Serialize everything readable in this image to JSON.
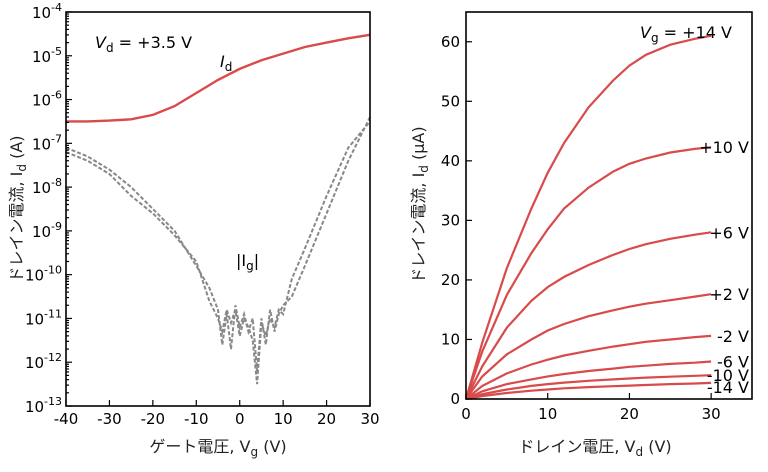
{
  "charts": {
    "left": {
      "xlabel": "ゲート電圧, V",
      "xlabel_sub": "g",
      "xlabel_unit": " (V)",
      "ylabel": "ドレイン電流, I",
      "ylabel_sub": "d",
      "ylabel_unit": " (A)",
      "annotation_main": "V",
      "annotation_sub": "d",
      "annotation_value": " = +3.5 V",
      "id_label": "I",
      "id_label_sub": "d",
      "ig_label_pre": "|I",
      "ig_label_sub": "g",
      "ig_label_post": "|"
    },
    "right": {
      "xlabel": "ドレイン電圧, V",
      "xlabel_sub": "d",
      "xlabel_unit": " (V)",
      "ylabel": "ドレイン電流, I",
      "ylabel_sub": "d",
      "ylabel_unit": " (μA)",
      "vg_title": "V",
      "vg_title_sub": "g",
      "vg_title_value": " = +14 V"
    }
  },
  "chart_data": [
    {
      "type": "line",
      "yscale": "log",
      "xlim": [
        -40,
        30
      ],
      "ylim_exponent": [
        -13,
        -4
      ],
      "xticks": [
        -40,
        -30,
        -20,
        -10,
        0,
        10,
        20,
        30
      ],
      "yticks_exponent": [
        -13,
        -12,
        -11,
        -10,
        -9,
        -8,
        -7,
        -6,
        -5,
        -4
      ],
      "series": [
        {
          "name": "Id",
          "color": "#d94a4a",
          "style": "solid",
          "x": [
            -40,
            -35,
            -30,
            -25,
            -20,
            -15,
            -10,
            -5,
            0,
            5,
            10,
            15,
            20,
            25,
            30
          ],
          "log10y": [
            -6.5,
            -6.5,
            -6.48,
            -6.45,
            -6.35,
            -6.15,
            -5.85,
            -5.55,
            -5.3,
            -5.1,
            -4.95,
            -4.8,
            -4.7,
            -4.6,
            -4.52
          ]
        },
        {
          "name": "|Ig| sweep 1",
          "color": "#888888",
          "style": "dashed",
          "x": [
            -40,
            -35,
            -30,
            -25,
            -20,
            -15,
            -10,
            -7,
            -5,
            -4,
            -3,
            -2,
            -1,
            0,
            1,
            2,
            3,
            4,
            5,
            6,
            7,
            8,
            9,
            10,
            12,
            15,
            20,
            25,
            30
          ],
          "log10y": [
            -7.1,
            -7.3,
            -7.6,
            -8.0,
            -8.5,
            -9.0,
            -9.8,
            -10.3,
            -10.8,
            -11.6,
            -10.9,
            -11.7,
            -10.7,
            -11.2,
            -10.9,
            -11.3,
            -11.0,
            -12.2,
            -11.0,
            -11.6,
            -10.8,
            -11.3,
            -10.9,
            -10.7,
            -10.5,
            -9.8,
            -8.6,
            -7.4,
            -6.4
          ]
        },
        {
          "name": "|Ig| sweep 2",
          "color": "#888888",
          "style": "dashed",
          "x": [
            -40,
            -35,
            -30,
            -25,
            -20,
            -15,
            -10,
            -7,
            -5,
            -4,
            -3,
            -2,
            -1,
            0,
            1,
            2,
            3,
            4,
            5,
            6,
            7,
            8,
            9,
            10,
            12,
            15,
            20,
            25,
            30
          ],
          "log10y": [
            -7.2,
            -7.4,
            -7.7,
            -8.2,
            -8.6,
            -9.1,
            -9.7,
            -10.6,
            -11.0,
            -11.3,
            -10.8,
            -11.1,
            -10.8,
            -11.4,
            -11.0,
            -11.2,
            -11.5,
            -12.5,
            -11.1,
            -11.4,
            -11.0,
            -11.2,
            -10.8,
            -10.9,
            -10.1,
            -9.4,
            -8.2,
            -7.1,
            -6.5
          ]
        }
      ]
    },
    {
      "type": "line",
      "xlim": [
        0,
        35
      ],
      "ylim": [
        0,
        65
      ],
      "xticks": [
        0,
        10,
        20,
        30
      ],
      "yticks": [
        0,
        10,
        20,
        30,
        40,
        50,
        60
      ],
      "series": [
        {
          "name": "Vg = +14 V",
          "color": "#d94a4a",
          "x": [
            0,
            2,
            5,
            8,
            10,
            12,
            15,
            18,
            20,
            22,
            25,
            28,
            30
          ],
          "y": [
            0,
            9.5,
            22,
            32,
            38,
            43,
            49,
            53.5,
            56,
            57.8,
            59.5,
            60.5,
            61
          ]
        },
        {
          "name": "Vg = +10 V",
          "color": "#d94a4a",
          "x": [
            0,
            2,
            5,
            8,
            10,
            12,
            15,
            18,
            20,
            22,
            25,
            28,
            30
          ],
          "y": [
            0,
            8,
            17.5,
            24.5,
            28.5,
            32,
            35.5,
            38.2,
            39.5,
            40.4,
            41.4,
            42,
            42.3
          ]
        },
        {
          "name": "Vg = +6 V",
          "color": "#d94a4a",
          "x": [
            0,
            2,
            5,
            8,
            10,
            12,
            15,
            18,
            20,
            22,
            25,
            28,
            30
          ],
          "y": [
            0,
            5.5,
            12,
            16.5,
            18.8,
            20.5,
            22.5,
            24.2,
            25.2,
            26,
            26.9,
            27.6,
            28
          ]
        },
        {
          "name": "Vg = +2 V",
          "color": "#d94a4a",
          "x": [
            0,
            2,
            5,
            8,
            10,
            12,
            15,
            18,
            20,
            22,
            25,
            28,
            30
          ],
          "y": [
            0,
            3.8,
            7.5,
            10,
            11.5,
            12.6,
            13.9,
            14.9,
            15.5,
            16,
            16.6,
            17.2,
            17.6
          ]
        },
        {
          "name": "Vg = -2 V",
          "color": "#d94a4a",
          "x": [
            0,
            2,
            5,
            8,
            10,
            12,
            15,
            18,
            20,
            22,
            25,
            28,
            30
          ],
          "y": [
            0,
            2.2,
            4.3,
            5.8,
            6.6,
            7.3,
            8.1,
            8.8,
            9.2,
            9.6,
            10,
            10.4,
            10.6
          ]
        },
        {
          "name": "Vg = -6 V",
          "color": "#d94a4a",
          "x": [
            0,
            2,
            5,
            8,
            10,
            12,
            15,
            18,
            20,
            22,
            25,
            28,
            30
          ],
          "y": [
            0,
            1.3,
            2.5,
            3.3,
            3.8,
            4.2,
            4.7,
            5.1,
            5.4,
            5.6,
            5.9,
            6.1,
            6.3
          ]
        },
        {
          "name": "Vg = -10 V",
          "color": "#d94a4a",
          "x": [
            0,
            2,
            5,
            8,
            10,
            12,
            15,
            18,
            20,
            22,
            25,
            28,
            30
          ],
          "y": [
            0,
            0.8,
            1.6,
            2.2,
            2.5,
            2.75,
            3.05,
            3.3,
            3.45,
            3.6,
            3.75,
            3.9,
            4.0
          ]
        },
        {
          "name": "Vg = -14 V",
          "color": "#d94a4a",
          "x": [
            0,
            2,
            5,
            8,
            10,
            12,
            15,
            18,
            20,
            22,
            25,
            28,
            30
          ],
          "y": [
            0,
            0.5,
            1.0,
            1.4,
            1.6,
            1.8,
            2.0,
            2.15,
            2.25,
            2.35,
            2.5,
            2.6,
            2.7
          ]
        }
      ],
      "curve_labels": [
        {
          "text": "+10 V",
          "y": 42.3
        },
        {
          "text": "+6 V",
          "y": 28
        },
        {
          "text": "+2 V",
          "y": 17.6
        },
        {
          "text": "-2 V",
          "y": 10.6
        },
        {
          "text": "-6 V",
          "y": 6.3
        },
        {
          "text": "-10 V",
          "y": 4.0
        },
        {
          "text": "-14 V",
          "y": 2.0
        }
      ]
    }
  ]
}
